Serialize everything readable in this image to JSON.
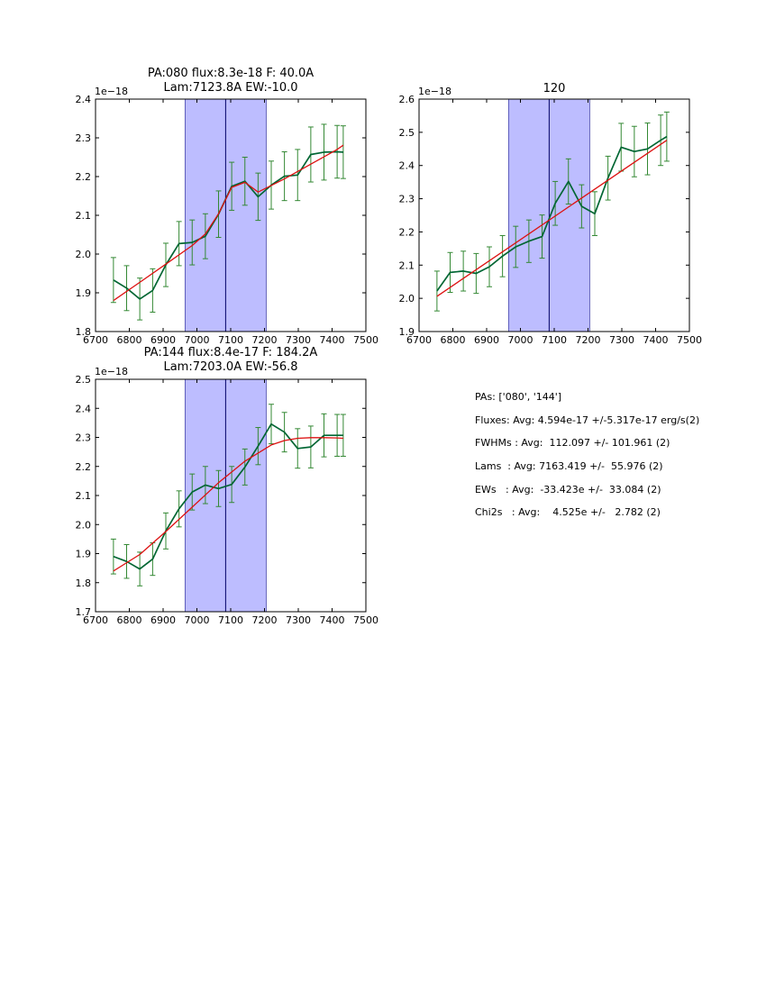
{
  "chart_data": [
    {
      "type": "line",
      "title_line1": "PA:080 flux:8.3e-18 F: 40.0A",
      "title_line2": "Lam:7123.8A EW:-10.0",
      "offset_label": "1e−18",
      "xlim": [
        6700,
        7500
      ],
      "ylim": [
        1.8,
        2.4
      ],
      "xticks": [
        "6700",
        "6800",
        "6900",
        "7000",
        "7100",
        "7200",
        "7300",
        "7400",
        "7500"
      ],
      "yticks": [
        "1.8",
        "1.9",
        "2.0",
        "2.1",
        "2.2",
        "2.3",
        "2.4"
      ],
      "shaded_region": [
        6965,
        7205
      ],
      "center_line": 7085,
      "series": [
        {
          "x": [
            6753,
            6792,
            6831,
            6869,
            6908,
            6947,
            6986,
            7025,
            7064,
            7103,
            7142,
            7181,
            7220,
            7259,
            7298,
            7337,
            7376,
            7415,
            7433
          ],
          "y": [
            1.933,
            1.912,
            1.884,
            1.906,
            1.972,
            2.027,
            2.03,
            2.046,
            2.103,
            2.175,
            2.188,
            2.148,
            2.178,
            2.201,
            2.204,
            2.257,
            2.263,
            2.264,
            2.263
          ],
          "err": [
            0.058,
            0.058,
            0.054,
            0.056,
            0.056,
            0.057,
            0.058,
            0.058,
            0.06,
            0.062,
            0.062,
            0.061,
            0.062,
            0.063,
            0.066,
            0.071,
            0.072,
            0.068,
            0.068
          ],
          "color": "#006633"
        },
        {
          "x": [
            6753,
            6831,
            6908,
            6986,
            7025,
            7064,
            7103,
            7142,
            7181,
            7259,
            7337,
            7415,
            7433
          ],
          "y": [
            1.88,
            1.927,
            1.974,
            2.022,
            2.052,
            2.104,
            2.172,
            2.185,
            2.16,
            2.194,
            2.232,
            2.27,
            2.281
          ],
          "color": "#dd1111"
        }
      ]
    },
    {
      "type": "line",
      "title_line1": "120",
      "title_line2": "",
      "offset_label": "1e−18",
      "xlim": [
        6700,
        7500
      ],
      "ylim": [
        1.9,
        2.6
      ],
      "xticks": [
        "6700",
        "6800",
        "6900",
        "7000",
        "7100",
        "7200",
        "7300",
        "7400",
        "7500"
      ],
      "yticks": [
        "1.9",
        "2.0",
        "2.1",
        "2.2",
        "2.3",
        "2.4",
        "2.5",
        "2.6"
      ],
      "shaded_region": [
        6965,
        7205
      ],
      "center_line": 7085,
      "series": [
        {
          "x": [
            6753,
            6792,
            6831,
            6869,
            6908,
            6947,
            6986,
            7025,
            7064,
            7103,
            7142,
            7181,
            7220,
            7259,
            7298,
            7337,
            7376,
            7415,
            7433
          ],
          "y": [
            2.022,
            2.078,
            2.082,
            2.075,
            2.095,
            2.127,
            2.155,
            2.172,
            2.186,
            2.286,
            2.352,
            2.277,
            2.255,
            2.362,
            2.455,
            2.442,
            2.45,
            2.476,
            2.487
          ],
          "err": [
            0.06,
            0.06,
            0.06,
            0.06,
            0.06,
            0.062,
            0.062,
            0.064,
            0.065,
            0.066,
            0.068,
            0.065,
            0.066,
            0.066,
            0.072,
            0.076,
            0.078,
            0.076,
            0.074
          ],
          "color": "#006633"
        },
        {
          "x": [
            6753,
            7433
          ],
          "y": [
            2.006,
            2.476
          ],
          "color": "#dd1111"
        }
      ]
    },
    {
      "type": "line",
      "title_line1": "PA:144 flux:8.4e-17 F: 184.2A",
      "title_line2": "Lam:7203.0A EW:-56.8",
      "offset_label": "1e−18",
      "xlim": [
        6700,
        7500
      ],
      "ylim": [
        1.7,
        2.5
      ],
      "xticks": [
        "6700",
        "6800",
        "6900",
        "7000",
        "7100",
        "7200",
        "7300",
        "7400",
        "7500"
      ],
      "yticks": [
        "1.7",
        "1.8",
        "1.9",
        "2.0",
        "2.1",
        "2.2",
        "2.3",
        "2.4",
        "2.5"
      ],
      "shaded_region": [
        6965,
        7205
      ],
      "center_line": 7085,
      "series": [
        {
          "x": [
            6753,
            6792,
            6831,
            6869,
            6908,
            6947,
            6986,
            7025,
            7064,
            7103,
            7142,
            7181,
            7220,
            7259,
            7298,
            7337,
            7376,
            7415,
            7433
          ],
          "y": [
            1.89,
            1.873,
            1.847,
            1.881,
            1.978,
            2.054,
            2.112,
            2.136,
            2.124,
            2.138,
            2.198,
            2.27,
            2.346,
            2.318,
            2.262,
            2.267,
            2.307,
            2.307,
            2.307
          ],
          "err": [
            0.06,
            0.058,
            0.058,
            0.056,
            0.062,
            0.062,
            0.062,
            0.064,
            0.062,
            0.062,
            0.062,
            0.064,
            0.068,
            0.068,
            0.068,
            0.072,
            0.074,
            0.072,
            0.072
          ],
          "color": "#006633"
        },
        {
          "x": [
            6753,
            6831,
            6908,
            6986,
            7064,
            7142,
            7220,
            7259,
            7298,
            7337,
            7376,
            7415,
            7433
          ],
          "y": [
            1.84,
            1.897,
            1.976,
            2.06,
            2.144,
            2.218,
            2.274,
            2.289,
            2.297,
            2.299,
            2.299,
            2.298,
            2.297
          ],
          "color": "#dd1111"
        }
      ]
    }
  ],
  "summary": {
    "pas": "PAs: ['080', '144']",
    "fluxes": "Fluxes: Avg: 4.594e-17 +/-5.317e-17 erg/s(2)",
    "fwhms": "FWHMs : Avg:  112.097 +/- 101.961 (2)",
    "lams": "Lams  : Avg: 7163.419 +/-  55.976 (2)",
    "ews": "EWs   : Avg:  -33.423e +/-  33.084 (2)",
    "chi2s": "Chi2s   : Avg:    4.525e +/-   2.782 (2)"
  }
}
